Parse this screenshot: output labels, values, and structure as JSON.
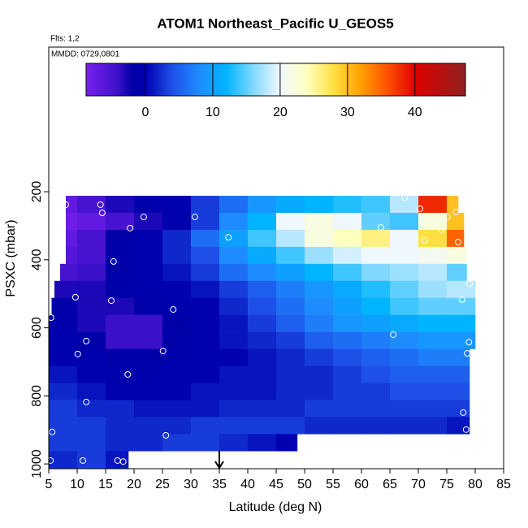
{
  "chart_data": {
    "type": "heatmap",
    "title": "ATOM1 Northeast_Pacific U_GEOS5",
    "subtitle": "Flts: 1,2",
    "annotation": "MMDD: 0729,0801",
    "x_label": "Latitude (deg N)",
    "y_label": "PSXC (mbar)",
    "xlim": [
      5,
      85
    ],
    "xticks": [
      5,
      10,
      15,
      20,
      25,
      30,
      35,
      40,
      45,
      50,
      55,
      60,
      65,
      70,
      75,
      80,
      85
    ],
    "ylim": [
      1014,
      -225
    ],
    "yticks": [
      200,
      400,
      600,
      800,
      1000
    ],
    "marker_x": 35,
    "colorbar": {
      "lim": [
        -8.8,
        47.5
      ],
      "ticks": [
        0,
        10,
        20,
        30,
        40
      ],
      "stops": [
        [
          -8.8,
          "#7a1ff0"
        ],
        [
          -4,
          "#3a10c8"
        ],
        [
          -2,
          "#0000a8"
        ],
        [
          0,
          "#0000b0"
        ],
        [
          4,
          "#1e50e8"
        ],
        [
          8,
          "#1e8cff"
        ],
        [
          12,
          "#00b4ff"
        ],
        [
          16,
          "#80d8ff"
        ],
        [
          20,
          "#f0f8ff"
        ],
        [
          24,
          "#ffffc0"
        ],
        [
          28,
          "#ffe040"
        ],
        [
          32,
          "#ffa000"
        ],
        [
          36,
          "#ff5000"
        ],
        [
          40,
          "#e00000"
        ],
        [
          47.5,
          "#902020"
        ]
      ]
    },
    "rows": [
      {
        "p": [
          212,
          262
        ],
        "lat": [
          8,
          10,
          15,
          20,
          25,
          30,
          35,
          40,
          45,
          50,
          55,
          60,
          65,
          70,
          75,
          77
        ],
        "values": [
          -7,
          -5,
          -3,
          -1,
          0,
          3,
          6,
          9,
          11,
          12,
          13,
          14,
          18,
          38,
          30
        ]
      },
      {
        "p": [
          262,
          312
        ],
        "lat": [
          8,
          10,
          15,
          20,
          25,
          30,
          35,
          40,
          45,
          50,
          55,
          60,
          65,
          70,
          75,
          78
        ],
        "values": [
          -8,
          -7,
          -5,
          -3,
          -1,
          3,
          8,
          12,
          20,
          22,
          20,
          15,
          14,
          22,
          30
        ]
      },
      {
        "p": [
          312,
          362
        ],
        "lat": [
          8,
          10,
          15,
          20,
          25,
          30,
          35,
          40,
          45,
          50,
          55,
          60,
          65,
          70,
          75,
          78
        ],
        "values": [
          -7,
          -5,
          -2,
          0,
          2,
          6,
          10,
          14,
          18,
          22,
          24,
          26,
          20,
          28,
          35
        ]
      },
      {
        "p": [
          362,
          412
        ],
        "lat": [
          8,
          10,
          15,
          20,
          25,
          30,
          35,
          40,
          45,
          50,
          55,
          60,
          65,
          70,
          75,
          78.5
        ],
        "values": [
          -6,
          -5,
          -2,
          0,
          2,
          4,
          8,
          11,
          14,
          17,
          19,
          20,
          20,
          21,
          22
        ]
      },
      {
        "p": [
          412,
          462
        ],
        "lat": [
          7,
          10,
          15,
          20,
          25,
          30,
          35,
          40,
          45,
          50,
          55,
          60,
          65,
          70,
          75,
          78.5
        ],
        "values": [
          -5,
          -4,
          -2,
          0,
          1,
          3,
          6,
          8,
          10,
          12,
          14,
          16,
          17,
          18,
          15
        ]
      },
      {
        "p": [
          462,
          512
        ],
        "lat": [
          6,
          10,
          15,
          20,
          25,
          30,
          35,
          40,
          45,
          50,
          55,
          60,
          65,
          70,
          75,
          80
        ],
        "values": [
          -3,
          -3,
          -2,
          -1,
          0,
          1,
          3,
          5,
          7,
          9,
          11,
          13,
          15,
          17,
          18
        ]
      },
      {
        "p": [
          512,
          562
        ],
        "lat": [
          5.5,
          10,
          15,
          20,
          25,
          30,
          35,
          40,
          45,
          50,
          55,
          60,
          65,
          70,
          75,
          80
        ],
        "values": [
          -2,
          -3,
          -3,
          -2,
          -1,
          0,
          2,
          4,
          6,
          8,
          10,
          12,
          14,
          15,
          15
        ]
      },
      {
        "p": [
          562,
          612
        ],
        "lat": [
          5,
          10,
          15,
          20,
          25,
          30,
          35,
          40,
          45,
          50,
          55,
          60,
          65,
          70,
          75,
          80
        ],
        "values": [
          -1,
          -3,
          -4,
          -4,
          -2,
          0,
          1,
          3,
          5,
          7,
          9,
          10,
          11,
          12,
          12
        ]
      },
      {
        "p": [
          612,
          662
        ],
        "lat": [
          5,
          10,
          15,
          20,
          25,
          30,
          35,
          40,
          45,
          50,
          55,
          60,
          65,
          70,
          75,
          80
        ],
        "values": [
          0,
          -2,
          -4,
          -4,
          -2,
          0,
          1,
          2,
          3,
          5,
          6,
          7,
          8,
          9,
          9
        ]
      },
      {
        "p": [
          662,
          712
        ],
        "lat": [
          5,
          10,
          15,
          20,
          25,
          30,
          35,
          40,
          45,
          50,
          55,
          60,
          65,
          70,
          75,
          79
        ],
        "values": [
          0,
          -1,
          -2,
          -2,
          -1,
          0,
          0,
          1,
          2,
          3,
          4,
          5,
          6,
          7,
          7
        ]
      },
      {
        "p": [
          712,
          762
        ],
        "lat": [
          5,
          10,
          15,
          20,
          25,
          30,
          35,
          40,
          45,
          50,
          55,
          60,
          65,
          70,
          75,
          79
        ],
        "values": [
          1,
          0,
          -1,
          -1,
          0,
          0,
          1,
          1,
          2,
          2,
          3,
          4,
          5,
          5,
          5
        ]
      },
      {
        "p": [
          762,
          812
        ],
        "lat": [
          5,
          10,
          15,
          20,
          25,
          30,
          35,
          40,
          45,
          50,
          55,
          60,
          65,
          70,
          75,
          79
        ],
        "values": [
          2,
          1,
          0,
          0,
          0,
          1,
          1,
          1,
          2,
          2,
          3,
          3,
          4,
          4,
          4
        ]
      },
      {
        "p": [
          812,
          862
        ],
        "lat": [
          5,
          10,
          15,
          20,
          25,
          30,
          35,
          40,
          45,
          50,
          55,
          60,
          65,
          70,
          75,
          79
        ],
        "values": [
          3,
          2,
          2,
          1,
          1,
          1,
          2,
          2,
          2,
          3,
          3,
          3,
          3,
          3,
          3
        ]
      },
      {
        "p": [
          862,
          912
        ],
        "lat": [
          5,
          10,
          15,
          20,
          25,
          30,
          35,
          40,
          45,
          50,
          55,
          60,
          65,
          70,
          75,
          79
        ],
        "values": [
          3,
          3,
          2,
          2,
          2,
          3,
          3,
          3,
          3,
          2,
          2,
          2,
          2,
          2,
          1
        ]
      },
      {
        "p": [
          912,
          962
        ],
        "lat": [
          5,
          10,
          15,
          20,
          25,
          30,
          35,
          40,
          45,
          48.7
        ],
        "values": [
          3,
          3,
          2,
          2,
          3,
          3,
          2,
          1,
          0
        ]
      },
      {
        "p": [
          962,
          1012
        ],
        "lat": [
          5,
          10,
          15,
          19
        ],
        "values": [
          2,
          3,
          1
        ]
      }
    ],
    "points": {
      "x": [
        8,
        14.1,
        14.4,
        21.7,
        19.3,
        27.4,
        30.7,
        36.6,
        16.4,
        67.6,
        70.3,
        76.6,
        75.1,
        74,
        63.4,
        71.1,
        77,
        79,
        9.7,
        16,
        26.9,
        77.7,
        5.4,
        65.6,
        11.6,
        25.1,
        10.1,
        78.9,
        78.6,
        18.9,
        11.6,
        77.9,
        78.4,
        5.6,
        25.6,
        5.3,
        11,
        17.1,
        18.1
      ],
      "y": [
        238,
        238,
        262,
        274,
        307,
        198,
        274,
        334,
        405,
        217,
        250,
        260,
        274,
        312,
        305,
        343,
        348,
        470,
        510,
        520,
        546,
        517,
        570,
        620,
        639,
        668,
        677,
        642,
        675,
        737,
        818,
        849,
        899,
        906,
        916,
        990,
        990,
        990,
        993
      ]
    }
  }
}
